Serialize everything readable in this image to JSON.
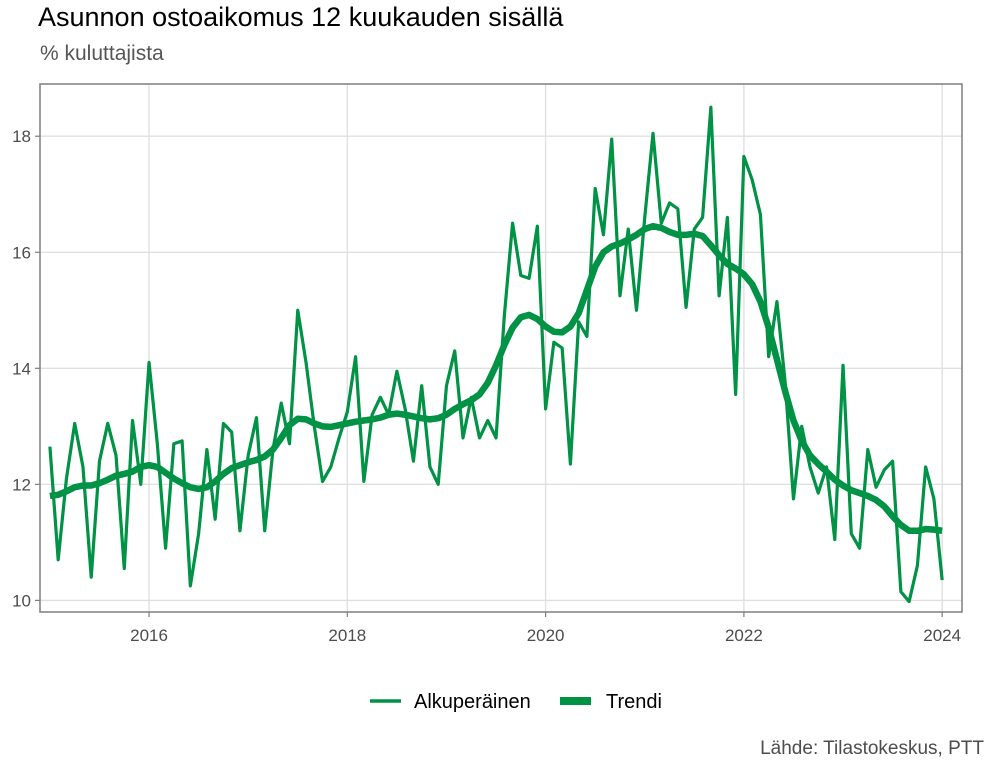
{
  "header": {
    "title": "Asunnon ostoaikomus 12 kuukauden sisällä",
    "subtitle": "% kuluttajista"
  },
  "footer": {
    "caption": "Lähde: Tilastokeskus, PTT"
  },
  "colors": {
    "line": "#009245",
    "grid": "#e0e0e0",
    "panel_border": "#7f7f7f"
  },
  "chart_data": {
    "type": "line",
    "title": "Asunnon ostoaikomus 12 kuukauden sisällä",
    "subtitle": "% kuluttajista",
    "xlabel": "",
    "ylabel": "",
    "xlim": [
      2014.9,
      2024.2
    ],
    "ylim": [
      9.8,
      18.9
    ],
    "x_ticks": [
      2016,
      2018,
      2020,
      2022,
      2024
    ],
    "x_tick_labels": [
      "2016",
      "2018",
      "2020",
      "2022",
      "2024"
    ],
    "y_ticks": [
      10,
      12,
      14,
      16,
      18
    ],
    "y_tick_labels": [
      "10",
      "12",
      "14",
      "16",
      "18"
    ],
    "grid": true,
    "legend": "bottom",
    "x_start": 2015.0,
    "x_step_months": 1,
    "series": [
      {
        "name": "Alkuperäinen",
        "color": "#009245",
        "width": "thin",
        "values": [
          12.65,
          10.7,
          12.1,
          13.05,
          12.3,
          10.4,
          12.4,
          13.05,
          12.5,
          10.55,
          13.1,
          12.0,
          14.1,
          12.7,
          10.9,
          12.7,
          12.75,
          10.25,
          11.15,
          12.6,
          11.4,
          13.05,
          12.9,
          11.2,
          12.5,
          13.15,
          11.2,
          12.6,
          13.4,
          12.7,
          15.0,
          14.1,
          13.0,
          12.05,
          12.3,
          12.8,
          13.25,
          14.2,
          12.05,
          13.2,
          13.5,
          13.2,
          13.95,
          13.3,
          12.4,
          13.7,
          12.3,
          12.0,
          13.7,
          14.3,
          12.8,
          13.5,
          12.8,
          13.1,
          12.8,
          14.9,
          16.5,
          15.6,
          15.55,
          16.45,
          13.3,
          14.45,
          14.35,
          12.35,
          14.8,
          14.55,
          17.1,
          16.3,
          17.95,
          15.25,
          16.4,
          15.0,
          16.6,
          18.05,
          16.5,
          16.85,
          16.75,
          15.05,
          16.4,
          16.6,
          18.5,
          15.25,
          16.6,
          13.55,
          17.65,
          17.25,
          16.65,
          14.2,
          15.15,
          13.75,
          11.75,
          13.0,
          12.3,
          11.85,
          12.3,
          11.05,
          14.05,
          11.15,
          10.9,
          12.6,
          11.95,
          12.25,
          12.4,
          10.15,
          9.98,
          10.6,
          12.3,
          11.75,
          10.35
        ]
      },
      {
        "name": "Trendi",
        "color": "#009245",
        "width": "thick",
        "values": [
          11.8,
          11.82,
          11.88,
          11.95,
          11.98,
          11.98,
          12.02,
          12.08,
          12.15,
          12.18,
          12.22,
          12.3,
          12.33,
          12.3,
          12.2,
          12.1,
          12.02,
          11.95,
          11.92,
          11.95,
          12.05,
          12.18,
          12.28,
          12.33,
          12.38,
          12.42,
          12.48,
          12.6,
          12.8,
          13.02,
          13.13,
          13.12,
          13.05,
          13.0,
          12.99,
          13.02,
          13.05,
          13.08,
          13.1,
          13.12,
          13.15,
          13.2,
          13.22,
          13.2,
          13.17,
          13.14,
          13.12,
          13.14,
          13.2,
          13.3,
          13.38,
          13.45,
          13.55,
          13.75,
          14.05,
          14.4,
          14.7,
          14.88,
          14.92,
          14.85,
          14.72,
          14.63,
          14.62,
          14.72,
          14.95,
          15.35,
          15.75,
          16.0,
          16.1,
          16.15,
          16.22,
          16.3,
          16.4,
          16.45,
          16.42,
          16.35,
          16.3,
          16.3,
          16.32,
          16.28,
          16.12,
          15.95,
          15.8,
          15.72,
          15.62,
          15.45,
          15.15,
          14.7,
          14.15,
          13.6,
          13.1,
          12.75,
          12.5,
          12.35,
          12.22,
          12.08,
          11.98,
          11.9,
          11.85,
          11.8,
          11.73,
          11.62,
          11.45,
          11.3,
          11.2,
          11.2,
          11.23,
          11.22,
          11.2
        ]
      }
    ]
  },
  "legend": {
    "items": [
      {
        "label": "Alkuperäinen"
      },
      {
        "label": "Trendi"
      }
    ]
  }
}
